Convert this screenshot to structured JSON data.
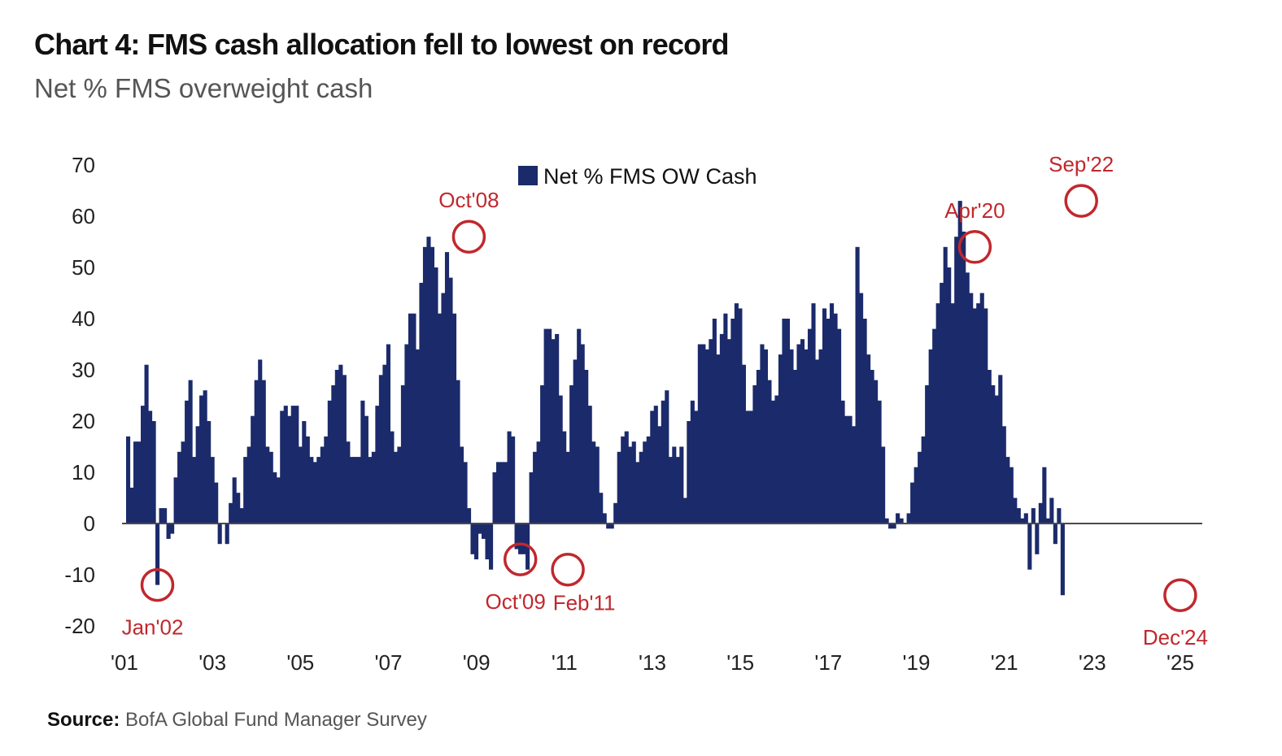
{
  "chart_data": {
    "type": "bar",
    "title": "Chart 4: FMS cash allocation fell to lowest on record",
    "subtitle": "Net % FMS overweight cash",
    "source_label": "Source:",
    "source_text": "BofA Global Fund Manager Survey",
    "ylim": [
      -20,
      70
    ],
    "yticks": [
      70,
      60,
      50,
      40,
      30,
      20,
      10,
      0,
      -10,
      -20
    ],
    "xlim": [
      2001.0,
      2025.0
    ],
    "xticks": [
      {
        "label": "'01",
        "x": 2001.0
      },
      {
        "label": "'03",
        "x": 2003.0
      },
      {
        "label": "'05",
        "x": 2005.0
      },
      {
        "label": "'07",
        "x": 2007.0
      },
      {
        "label": "'09",
        "x": 2009.0
      },
      {
        "label": "'11",
        "x": 2011.0
      },
      {
        "label": "'13",
        "x": 2013.0
      },
      {
        "label": "'15",
        "x": 2015.0
      },
      {
        "label": "'17",
        "x": 2017.0
      },
      {
        "label": "'19",
        "x": 2019.0
      },
      {
        "label": "'21",
        "x": 2021.0
      },
      {
        "label": "'23",
        "x": 2023.0
      },
      {
        "label": "'25",
        "x": 2025.0
      }
    ],
    "grid": false,
    "legend": {
      "position": "top-center",
      "entries": [
        {
          "name": "Net % FMS OW Cash",
          "color": "#1b2a6b"
        }
      ]
    },
    "series": [
      {
        "name": "Net % FMS OW Cash",
        "color": "#1b2a6b",
        "x_start": 2001.0,
        "x_step": 0.0833,
        "values": [
          17,
          7,
          16,
          16,
          23,
          31,
          22,
          20,
          -12,
          3,
          3,
          -3,
          -2,
          9,
          14,
          16,
          24,
          28,
          13,
          19,
          25,
          26,
          20,
          13,
          8,
          -4,
          0,
          -4,
          4,
          9,
          6,
          3,
          13,
          15,
          21,
          28,
          32,
          28,
          15,
          14,
          10,
          9,
          22,
          23,
          21,
          23,
          23,
          15,
          20,
          17,
          13,
          12,
          13,
          15,
          17,
          24,
          27,
          30,
          31,
          29,
          16,
          13,
          13,
          13,
          24,
          21,
          13,
          14,
          23,
          29,
          31,
          35,
          18,
          14,
          15,
          27,
          35,
          41,
          41,
          34,
          47,
          54,
          56,
          54,
          50,
          41,
          45,
          53,
          48,
          41,
          28,
          15,
          12,
          3,
          -6,
          -7,
          -2,
          -3,
          -7,
          -9,
          10,
          12,
          12,
          12,
          18,
          17,
          -5,
          -6,
          -6,
          -9,
          10,
          14,
          16,
          27,
          38,
          38,
          36,
          37,
          25,
          18,
          14,
          27,
          32,
          38,
          35,
          30,
          23,
          16,
          15,
          6,
          2,
          -1,
          -1,
          4,
          14,
          17,
          18,
          15,
          16,
          12,
          14,
          16,
          17,
          22,
          23,
          19,
          24,
          26,
          13,
          15,
          13,
          15,
          5,
          20,
          24,
          22,
          35,
          35,
          34,
          36,
          40,
          33,
          37,
          41,
          36,
          40,
          43,
          42,
          31,
          22,
          22,
          27,
          30,
          35,
          34,
          28,
          24,
          25,
          33,
          40,
          40,
          34,
          30,
          35,
          36,
          34,
          38,
          43,
          32,
          34,
          42,
          40,
          43,
          41,
          38,
          24,
          21,
          21,
          19,
          54,
          45,
          40,
          33,
          30,
          28,
          24,
          15,
          1,
          -1,
          -1,
          2,
          1,
          0,
          2,
          8,
          11,
          14,
          17,
          27,
          34,
          38,
          43,
          47,
          54,
          50,
          43,
          56,
          63,
          57,
          49,
          45,
          42,
          43,
          45,
          42,
          30,
          27,
          25,
          29,
          19,
          13,
          11,
          5,
          3,
          1,
          2,
          -9,
          3,
          -6,
          4,
          11,
          1,
          5,
          -4,
          3,
          -14
        ]
      }
    ],
    "annotations": [
      {
        "label": "Jan'02",
        "x": 2001.67,
        "y": -12,
        "label_pos": "below-left",
        "color": "#c0282d"
      },
      {
        "label": "Oct'08",
        "x": 2008.75,
        "y": 56,
        "label_pos": "above",
        "color": "#c0282d"
      },
      {
        "label": "Oct'09",
        "x": 2009.92,
        "y": -7,
        "label_pos": "below-left",
        "color": "#c0282d"
      },
      {
        "label": "Feb'11",
        "x": 2011.0,
        "y": -9,
        "label_pos": "below-right",
        "color": "#c0282d"
      },
      {
        "label": "Apr'20",
        "x": 2020.25,
        "y": 54,
        "label_pos": "above",
        "color": "#c0282d"
      },
      {
        "label": "Sep'22",
        "x": 2022.67,
        "y": 63,
        "label_pos": "above",
        "color": "#c0282d"
      },
      {
        "label": "Dec'24",
        "x": 2024.92,
        "y": -14,
        "label_pos": "below-left",
        "color": "#c0282d"
      }
    ]
  }
}
